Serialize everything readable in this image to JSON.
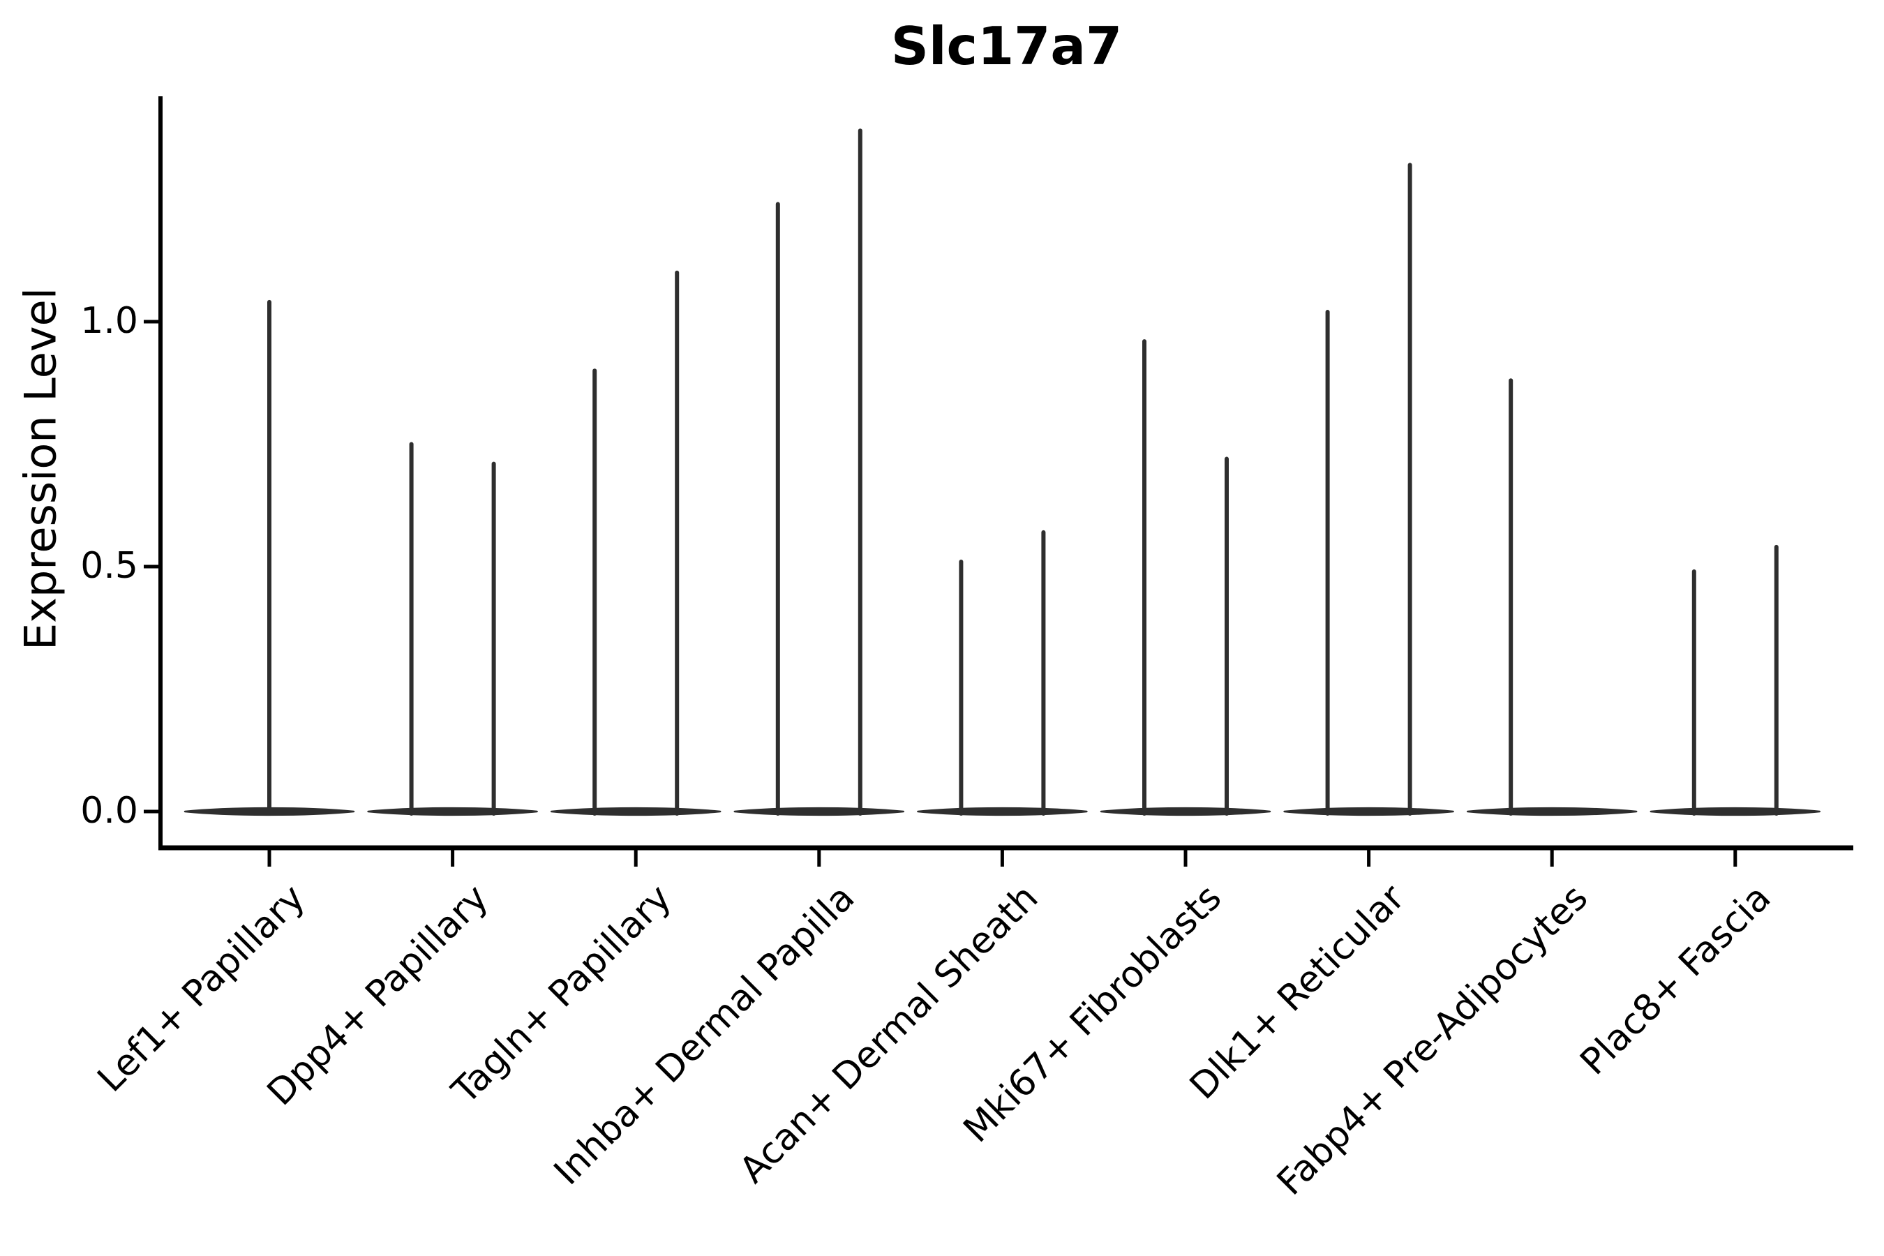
{
  "title": "Slc17a7",
  "ylabel": "Expression Level",
  "chart_data": {
    "type": "violin",
    "title": "Slc17a7",
    "xlabel": "",
    "ylabel": "Expression Level",
    "ylim": [
      0,
      1.45
    ],
    "yticks": [
      0.0,
      0.5,
      1.0
    ],
    "ytick_labels": [
      "0.0",
      "0.5",
      "1.0"
    ],
    "grid": false,
    "legend": "none",
    "categories": [
      "Lef1+ Papillary",
      "Dpp4+ Papillary",
      "Tagln+ Papillary",
      "Inhba+ Dermal Papilla",
      "Acan+ Dermal Sheath",
      "Mki67+ Fibroblasts",
      "Dlk1+ Reticular",
      "Fabp4+ Pre-Adipocytes",
      "Plac8+ Fascia"
    ],
    "violins": [
      {
        "category": "Lef1+ Papillary",
        "spikes": [
          {
            "position": "center",
            "max": 1.04
          }
        ]
      },
      {
        "category": "Dpp4+ Papillary",
        "spikes": [
          {
            "position": "left",
            "max": 0.75
          },
          {
            "position": "right",
            "max": 0.71
          }
        ]
      },
      {
        "category": "Tagln+ Papillary",
        "spikes": [
          {
            "position": "left",
            "max": 0.9
          },
          {
            "position": "right",
            "max": 1.1
          }
        ]
      },
      {
        "category": "Inhba+ Dermal Papilla",
        "spikes": [
          {
            "position": "left",
            "max": 1.24
          },
          {
            "position": "right",
            "max": 1.39
          }
        ]
      },
      {
        "category": "Acan+ Dermal Sheath",
        "spikes": [
          {
            "position": "left",
            "max": 0.51
          },
          {
            "position": "right",
            "max": 0.57
          }
        ]
      },
      {
        "category": "Mki67+ Fibroblasts",
        "spikes": [
          {
            "position": "left",
            "max": 0.96
          },
          {
            "position": "right",
            "max": 0.72
          }
        ]
      },
      {
        "category": "Dlk1+ Reticular",
        "spikes": [
          {
            "position": "left",
            "max": 1.02
          },
          {
            "position": "right",
            "max": 1.32
          }
        ]
      },
      {
        "category": "Fabp4+ Pre-Adipocytes",
        "spikes": [
          {
            "position": "left",
            "max": 0.88
          }
        ]
      },
      {
        "category": "Plac8+ Fascia",
        "spikes": [
          {
            "position": "left",
            "max": 0.49
          },
          {
            "position": "right",
            "max": 0.54
          }
        ]
      }
    ],
    "description": "Violin plot; each distribution collapses to a flat bar at expression 0 with a thin spike rising to its maximum expression value.",
    "colors": {
      "violin": "#2e2e2e",
      "axis": "#000000",
      "text": "#000000",
      "background": "#ffffff"
    }
  }
}
